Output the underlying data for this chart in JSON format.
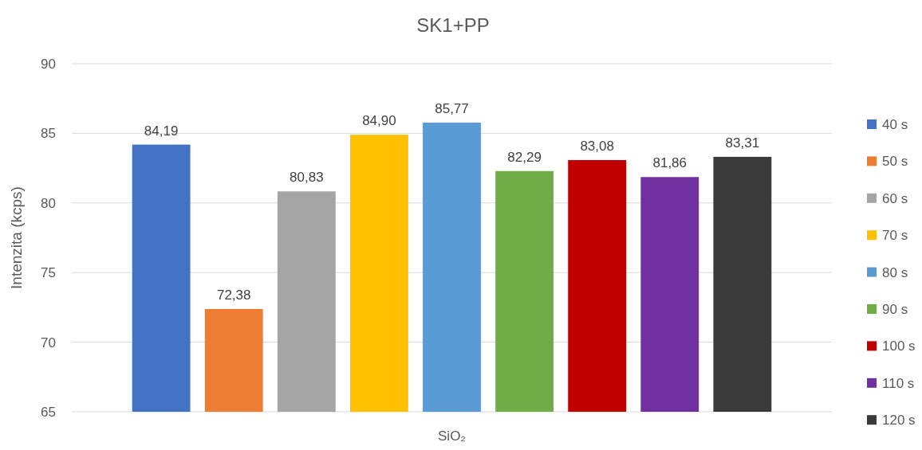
{
  "chart_data": {
    "type": "bar",
    "title": "SK1+PP",
    "ylabel": "Intenzita (kcps)",
    "categories": [
      "SiO₂"
    ],
    "series": [
      {
        "name": "40 s",
        "color": "#4472c4",
        "values": [
          84.19
        ],
        "value_labels": [
          "84,19"
        ]
      },
      {
        "name": "50 s",
        "color": "#ed7d31",
        "values": [
          72.38
        ],
        "value_labels": [
          "72,38"
        ]
      },
      {
        "name": "60 s",
        "color": "#a5a5a5",
        "values": [
          80.83
        ],
        "value_labels": [
          "80,83"
        ]
      },
      {
        "name": "70 s",
        "color": "#ffc000",
        "values": [
          84.9
        ],
        "value_labels": [
          "84,90"
        ]
      },
      {
        "name": "80 s",
        "color": "#5b9bd5",
        "values": [
          85.77
        ],
        "value_labels": [
          "85,77"
        ]
      },
      {
        "name": "90 s",
        "color": "#70ad47",
        "values": [
          82.29
        ],
        "value_labels": [
          "82,29"
        ]
      },
      {
        "name": "100 s",
        "color": "#c00000",
        "values": [
          83.08
        ],
        "value_labels": [
          "83,08"
        ]
      },
      {
        "name": "110 s",
        "color": "#7030a0",
        "values": [
          81.86
        ],
        "value_labels": [
          "81,86"
        ]
      },
      {
        "name": "120 s",
        "color": "#3a3a3a",
        "values": [
          83.31
        ],
        "value_labels": [
          "83,31"
        ]
      }
    ],
    "ylim": [
      65,
      90
    ],
    "yticks": [
      65,
      70,
      75,
      80,
      85,
      90
    ],
    "grid": "y",
    "legend": "right"
  }
}
